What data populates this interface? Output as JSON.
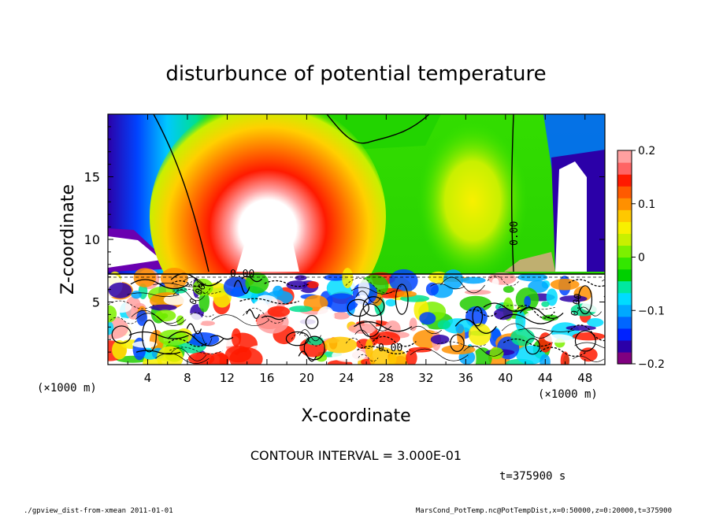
{
  "chart_data": {
    "type": "heatmap",
    "title": "disturbunce of potential temperature",
    "xlabel": "X-coordinate",
    "ylabel": "Z-coordinate",
    "x_unit_left": "(×1000 m)",
    "x_unit_right": "(×1000 m)",
    "x_ticks": [
      "4",
      "8",
      "12",
      "16",
      "20",
      "24",
      "28",
      "32",
      "36",
      "40",
      "44",
      "48"
    ],
    "x_tick_values": [
      4,
      8,
      12,
      16,
      20,
      24,
      28,
      32,
      36,
      40,
      44,
      48
    ],
    "y_ticks": [
      "5",
      "10",
      "15"
    ],
    "y_tick_values": [
      5,
      10,
      15
    ],
    "xlim": [
      0,
      50
    ],
    "ylim": [
      0,
      20
    ],
    "colorbar": {
      "min": -0.2,
      "max": 0.2,
      "tick_labels": [
        "0.2",
        "0.1",
        "0",
        "−0.1",
        "−0.2"
      ],
      "tick_values": [
        0.2,
        0.1,
        0,
        -0.1,
        -0.2
      ],
      "colors": [
        "#800080",
        "#2b00a8",
        "#0022ff",
        "#0066ff",
        "#00a8ff",
        "#00dcff",
        "#00e8a0",
        "#00d000",
        "#33e600",
        "#7cf000",
        "#c8f000",
        "#f8f000",
        "#ffc800",
        "#ff9000",
        "#ff5a00",
        "#ff1a00",
        "#ff6464",
        "#ffa0a0"
      ]
    },
    "contour_labels": [
      "0.00",
      "0.00",
      "0.00",
      "0.00",
      "0.00"
    ],
    "contour_interval": "CONTOUR INTERVAL = 3.000E-01",
    "time": "t=375900 s"
  },
  "footer": {
    "left": "./gpview_dist-from-xmean  2011-01-01",
    "right": "MarsCond_PotTemp.nc@PotTempDist,x=0:50000,z=0:20000,t=375900"
  }
}
